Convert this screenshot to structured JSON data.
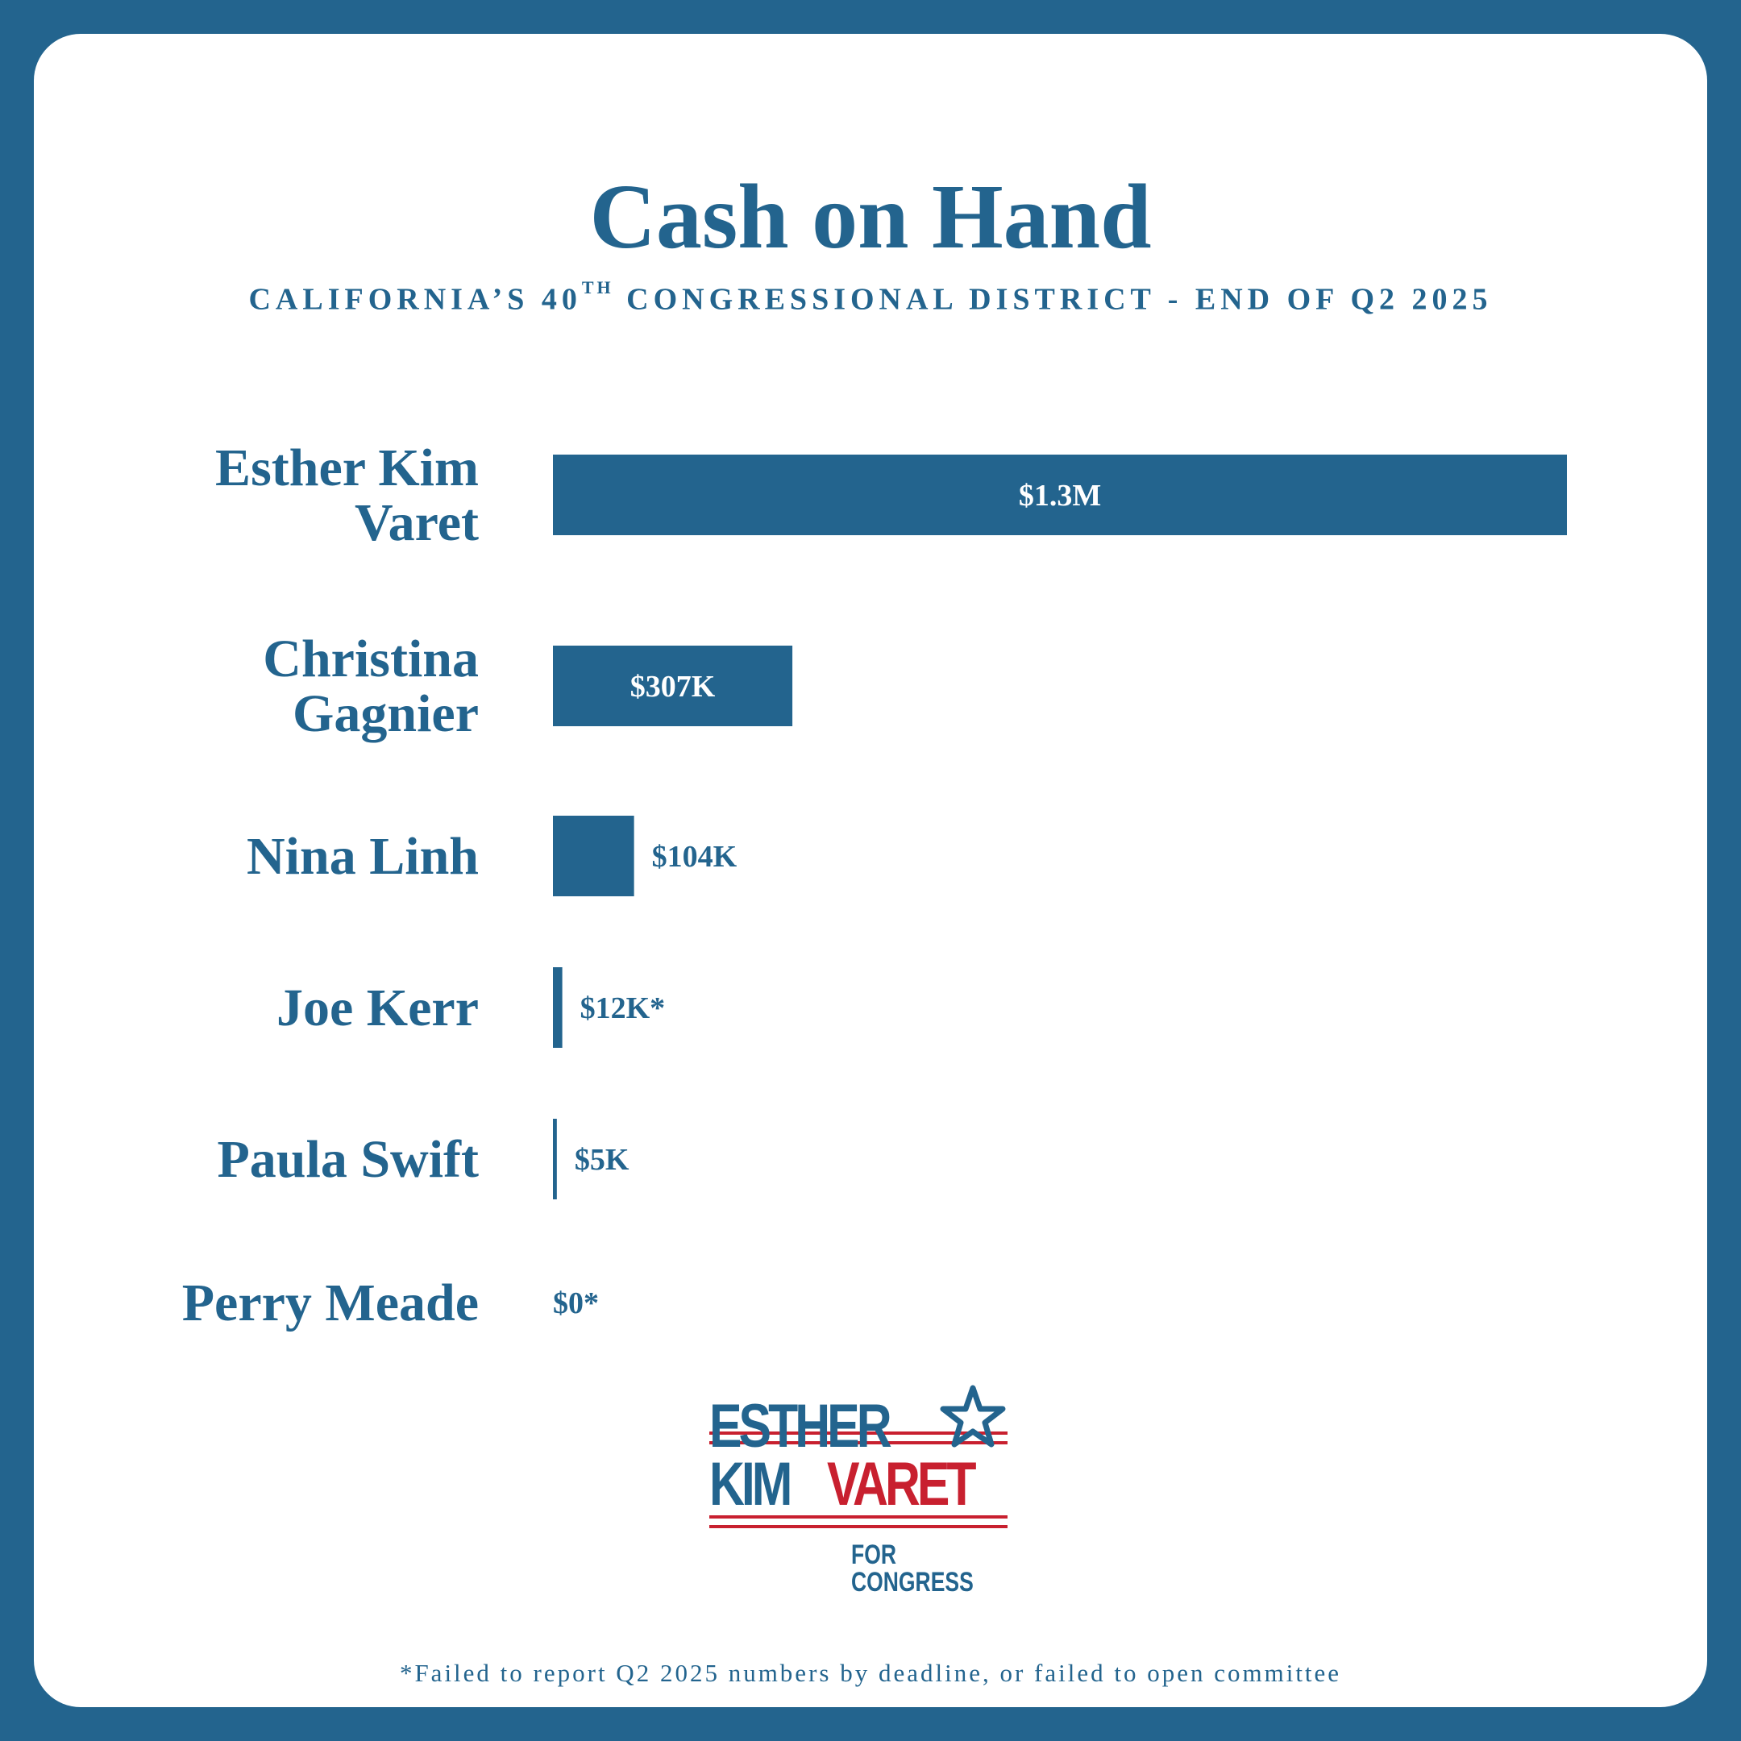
{
  "theme": {
    "accent": "#23648e",
    "logo_red": "#c8202f",
    "background": "#ffffff"
  },
  "title": "Cash on Hand",
  "subtitle": {
    "prefix": "CALIFORNIA’S 40",
    "superscript": "TH",
    "suffix": " CONGRESSIONAL DISTRICT - END OF Q2 2025"
  },
  "chart_data": {
    "type": "bar",
    "orientation": "horizontal",
    "title": "Cash on Hand",
    "subtitle": "CALIFORNIA’S 40TH CONGRESSIONAL DISTRICT - END OF Q2 2025",
    "categories": [
      "Esther Kim Varet",
      "Christina Gagnier",
      "Nina Linh",
      "Joe Kerr",
      "Paula Swift",
      "Perry Meade"
    ],
    "name_lines": [
      [
        "Esther Kim",
        "Varet"
      ],
      [
        "Christina",
        "Gagnier"
      ],
      [
        "Nina Linh"
      ],
      [
        "Joe Kerr"
      ],
      [
        "Paula Swift"
      ],
      [
        "Perry Meade"
      ]
    ],
    "values": [
      1300000,
      307000,
      104000,
      12000,
      5000,
      0
    ],
    "labels": [
      "$1.3M",
      "$307K",
      "$104K",
      "$12K*",
      "$5K",
      "$0*"
    ],
    "label_inside": [
      true,
      true,
      false,
      false,
      false,
      false
    ],
    "color": "#23648e",
    "grid": false,
    "axes": "none"
  },
  "logo": {
    "line1": "ESTHER",
    "line2a": "KIM",
    "line2b": "VARET",
    "line3": "FOR CONGRESS"
  },
  "footnote": "*Failed to report Q2 2025 numbers by deadline, or failed to open committee"
}
